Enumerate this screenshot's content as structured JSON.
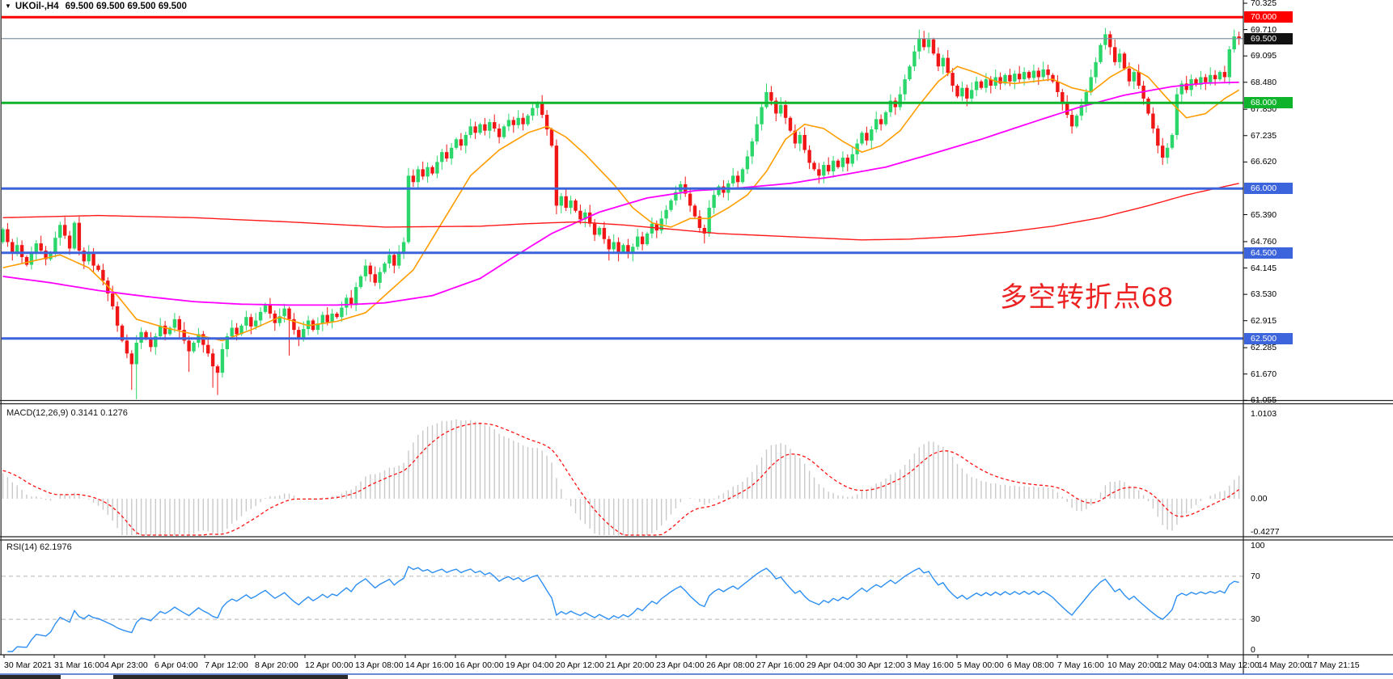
{
  "window": {
    "dropdown_glyph": "▼",
    "symbol_period": "UKOil-,H4",
    "quotes": "69.500 69.500 69.500 69.500"
  },
  "colors": {
    "candle_up": "#2bd76b",
    "candle_down": "#f01616",
    "ma_fast": "#ff9d00",
    "ma_mid": "#ff00ff",
    "ma_slow": "#ff1a1a",
    "macd_hist": "#c9c9c9",
    "macd_signal": "#ff1212",
    "rsi_line": "#2e8ff2",
    "rsi_level_dash": "#b5b5b5",
    "level_red": "#ff0000",
    "level_green": "#10b42c",
    "level_blue": "#3c64dc",
    "price_line_gray": "#8296a8",
    "separator": "#222222",
    "axis_text": "#000000",
    "bottom_bar_blue": "#3b62c9",
    "annotation_red": "#ec2222"
  },
  "annotation": {
    "text": "多空转折点68"
  },
  "price_axis": {
    "labels": [
      {
        "text": "70.325",
        "price": 70.325
      },
      {
        "text": "69.710",
        "price": 69.71
      },
      {
        "text": "69.095",
        "price": 69.095
      },
      {
        "text": "68.480",
        "price": 68.48
      },
      {
        "text": "67.850",
        "price": 67.85
      },
      {
        "text": "67.235",
        "price": 67.235
      },
      {
        "text": "66.620",
        "price": 66.62
      },
      {
        "text": "65.390",
        "price": 65.39
      },
      {
        "text": "64.760",
        "price": 64.76
      },
      {
        "text": "64.145",
        "price": 64.145
      },
      {
        "text": "63.530",
        "price": 63.53
      },
      {
        "text": "62.915",
        "price": 62.915
      },
      {
        "text": "62.285",
        "price": 62.285
      },
      {
        "text": "61.670",
        "price": 61.67
      },
      {
        "text": "61.055",
        "price": 61.055
      }
    ],
    "badges": [
      {
        "text": "70.000",
        "price": 70.0,
        "bg": "#ff0000"
      },
      {
        "text": "69.500",
        "price": 69.5,
        "bg": "#111111"
      },
      {
        "text": "68.000",
        "price": 68.0,
        "bg": "#10b42c"
      },
      {
        "text": "66.000",
        "price": 66.0,
        "bg": "#3c64dc"
      },
      {
        "text": "64.500",
        "price": 64.5,
        "bg": "#3c64dc"
      },
      {
        "text": "62.500",
        "price": 62.5,
        "bg": "#3c64dc"
      }
    ]
  },
  "time_axis": {
    "labels": [
      "30 Mar 2021",
      "31 Mar 16:00",
      "4 Apr 23:00",
      "6 Apr 04:00",
      "7 Apr 12:00",
      "8 Apr 20:00",
      "12 Apr 00:00",
      "13 Apr 08:00",
      "14 Apr 16:00",
      "16 Apr 00:00",
      "19 Apr 04:00",
      "20 Apr 12:00",
      "21 Apr 20:00",
      "23 Apr 04:00",
      "26 Apr 08:00",
      "27 Apr 16:00",
      "29 Apr 04:00",
      "30 Apr 12:00",
      "3 May 16:00",
      "5 May 00:00",
      "6 May 08:00",
      "7 May 16:00",
      "10 May 20:00",
      "12 May 04:00",
      "13 May 12:00",
      "14 May 20:00",
      "17 May 21:15"
    ]
  },
  "chart_data": {
    "type": "candlestick",
    "symbol": "UKOil-",
    "timeframe": "H4",
    "title": "UKOil-,H4 69.500 69.500 69.500 69.500",
    "ylim": [
      61.055,
      70.325
    ],
    "grid": false,
    "horizontal_levels": [
      {
        "price": 70.0,
        "color": "#ff0000",
        "width": 3
      },
      {
        "price": 69.5,
        "color": "#8296a8",
        "width": 1.2
      },
      {
        "price": 68.0,
        "color": "#10b42c",
        "width": 3
      },
      {
        "price": 66.0,
        "color": "#3c64dc",
        "width": 3
      },
      {
        "price": 64.5,
        "color": "#3c64dc",
        "width": 3
      },
      {
        "price": 62.5,
        "color": "#3c64dc",
        "width": 3
      }
    ],
    "first_open": 64.75,
    "closes": [
      65.05,
      64.75,
      64.5,
      64.68,
      64.4,
      64.22,
      64.5,
      64.72,
      64.55,
      64.35,
      64.5,
      64.85,
      65.15,
      64.9,
      64.6,
      65.2,
      64.55,
      64.3,
      64.5,
      64.2,
      64.1,
      63.85,
      63.55,
      63.25,
      62.8,
      62.45,
      62.15,
      61.9,
      62.4,
      62.65,
      62.5,
      62.3,
      62.55,
      62.8,
      62.6,
      62.75,
      62.95,
      62.7,
      62.45,
      62.2,
      62.4,
      62.6,
      62.35,
      62.15,
      61.85,
      61.7,
      62.25,
      62.55,
      62.75,
      62.6,
      62.8,
      63.0,
      62.78,
      62.92,
      63.12,
      63.3,
      63.08,
      62.86,
      63.02,
      63.2,
      62.95,
      62.7,
      62.5,
      62.72,
      62.92,
      62.7,
      62.85,
      63.05,
      62.88,
      63.08,
      63.0,
      63.22,
      63.45,
      63.28,
      63.7,
      63.95,
      64.2,
      64.0,
      63.8,
      64.05,
      64.25,
      64.45,
      64.2,
      64.5,
      64.75,
      66.3,
      66.15,
      66.45,
      66.28,
      66.5,
      66.35,
      66.62,
      66.85,
      66.7,
      66.95,
      67.15,
      67.0,
      67.25,
      67.45,
      67.3,
      67.5,
      67.35,
      67.55,
      67.4,
      67.2,
      67.45,
      67.6,
      67.48,
      67.65,
      67.5,
      67.7,
      67.88,
      68.0,
      67.72,
      67.38,
      67.0,
      65.6,
      65.82,
      65.55,
      65.72,
      65.48,
      65.28,
      65.44,
      65.18,
      64.92,
      65.08,
      64.82,
      64.58,
      64.75,
      64.52,
      64.68,
      64.48,
      64.64,
      64.88,
      64.7,
      64.95,
      65.18,
      65.02,
      65.3,
      65.5,
      65.72,
      65.92,
      66.1,
      65.88,
      65.6,
      65.35,
      65.08,
      64.95,
      65.55,
      65.85,
      66.05,
      65.9,
      66.12,
      66.3,
      66.15,
      66.45,
      66.75,
      67.1,
      67.5,
      67.9,
      68.25,
      68.05,
      67.75,
      67.95,
      67.65,
      67.35,
      67.05,
      67.25,
      66.9,
      66.6,
      66.45,
      66.3,
      66.55,
      66.4,
      66.65,
      66.5,
      66.72,
      66.58,
      66.8,
      67.05,
      67.3,
      67.12,
      67.38,
      67.62,
      67.5,
      67.78,
      68.05,
      67.9,
      68.2,
      68.55,
      68.85,
      69.2,
      69.5,
      69.3,
      69.48,
      69.15,
      68.85,
      69.05,
      68.7,
      68.4,
      68.15,
      68.35,
      68.1,
      68.3,
      68.5,
      68.35,
      68.55,
      68.4,
      68.6,
      68.45,
      68.65,
      68.5,
      68.68,
      68.55,
      68.72,
      68.58,
      68.75,
      68.6,
      68.78,
      68.65,
      68.5,
      68.25,
      68.0,
      67.72,
      67.45,
      67.7,
      67.95,
      68.25,
      68.6,
      68.95,
      69.35,
      69.6,
      69.3,
      68.95,
      69.15,
      68.8,
      68.5,
      68.72,
      68.4,
      68.1,
      67.75,
      67.4,
      67.0,
      66.72,
      66.95,
      67.25,
      68.2,
      68.45,
      68.3,
      68.55,
      68.42,
      68.6,
      68.48,
      68.65,
      68.55,
      68.72,
      68.6,
      69.25,
      69.55,
      69.5
    ],
    "wick_overrides": {
      "27": {
        "low": 61.3
      },
      "28": {
        "low": 61.08
      },
      "39": {
        "low": 61.72
      },
      "44": {
        "low": 61.35
      },
      "45": {
        "low": 61.18
      },
      "60": {
        "low": 62.1
      },
      "85": {
        "high": 66.48
      },
      "112": {
        "high": 68.04
      },
      "116": {
        "low": 65.4
      },
      "127": {
        "low": 64.32
      },
      "129": {
        "low": 64.3
      },
      "147": {
        "low": 64.72
      },
      "160": {
        "high": 68.45
      },
      "171": {
        "low": 66.12
      },
      "192": {
        "high": 69.71
      },
      "194": {
        "high": 69.64
      },
      "224": {
        "low": 67.28
      },
      "231": {
        "high": 69.75
      },
      "243": {
        "low": 66.55
      },
      "258": {
        "high": 69.71
      }
    },
    "ma_lines": [
      {
        "name": "ma-fast-orange",
        "color": "#ff9d00",
        "width": 1.6,
        "anchors": [
          [
            0,
            64.15
          ],
          [
            8,
            64.35
          ],
          [
            12,
            64.45
          ],
          [
            18,
            64.15
          ],
          [
            24,
            63.5
          ],
          [
            28,
            62.95
          ],
          [
            34,
            62.75
          ],
          [
            40,
            62.6
          ],
          [
            46,
            62.45
          ],
          [
            52,
            62.7
          ],
          [
            58,
            63.0
          ],
          [
            64,
            62.8
          ],
          [
            70,
            62.9
          ],
          [
            76,
            63.1
          ],
          [
            82,
            63.7
          ],
          [
            86,
            64.1
          ],
          [
            92,
            65.2
          ],
          [
            98,
            66.3
          ],
          [
            104,
            66.9
          ],
          [
            110,
            67.3
          ],
          [
            114,
            67.45
          ],
          [
            118,
            67.2
          ],
          [
            122,
            66.8
          ],
          [
            128,
            66.1
          ],
          [
            132,
            65.55
          ],
          [
            136,
            65.2
          ],
          [
            140,
            65.1
          ],
          [
            144,
            65.3
          ],
          [
            148,
            65.3
          ],
          [
            152,
            65.55
          ],
          [
            156,
            65.85
          ],
          [
            160,
            66.4
          ],
          [
            164,
            67.15
          ],
          [
            168,
            67.5
          ],
          [
            172,
            67.4
          ],
          [
            176,
            67.1
          ],
          [
            180,
            66.85
          ],
          [
            184,
            67.0
          ],
          [
            188,
            67.35
          ],
          [
            192,
            67.95
          ],
          [
            196,
            68.5
          ],
          [
            200,
            68.85
          ],
          [
            204,
            68.7
          ],
          [
            208,
            68.5
          ],
          [
            212,
            68.45
          ],
          [
            216,
            68.5
          ],
          [
            220,
            68.55
          ],
          [
            224,
            68.35
          ],
          [
            228,
            68.25
          ],
          [
            232,
            68.6
          ],
          [
            236,
            68.85
          ],
          [
            240,
            68.6
          ],
          [
            244,
            68.1
          ],
          [
            248,
            67.65
          ],
          [
            252,
            67.75
          ],
          [
            256,
            68.1
          ],
          [
            259,
            68.3
          ]
        ]
      },
      {
        "name": "ma-mid-magenta",
        "color": "#ff00ff",
        "width": 1.8,
        "anchors": [
          [
            0,
            63.95
          ],
          [
            10,
            63.8
          ],
          [
            20,
            63.62
          ],
          [
            30,
            63.48
          ],
          [
            40,
            63.36
          ],
          [
            50,
            63.3
          ],
          [
            60,
            63.28
          ],
          [
            70,
            63.28
          ],
          [
            80,
            63.33
          ],
          [
            90,
            63.5
          ],
          [
            100,
            63.9
          ],
          [
            107,
            64.4
          ],
          [
            115,
            64.95
          ],
          [
            125,
            65.45
          ],
          [
            135,
            65.78
          ],
          [
            145,
            65.95
          ],
          [
            155,
            66.02
          ],
          [
            165,
            66.12
          ],
          [
            175,
            66.3
          ],
          [
            185,
            66.5
          ],
          [
            195,
            66.82
          ],
          [
            205,
            67.15
          ],
          [
            215,
            67.52
          ],
          [
            225,
            67.88
          ],
          [
            235,
            68.18
          ],
          [
            245,
            68.38
          ],
          [
            252,
            68.46
          ],
          [
            259,
            68.48
          ]
        ]
      },
      {
        "name": "ma-slow-red",
        "color": "#ff1a1a",
        "width": 1.4,
        "anchors": [
          [
            0,
            65.32
          ],
          [
            20,
            65.37
          ],
          [
            40,
            65.32
          ],
          [
            60,
            65.22
          ],
          [
            80,
            65.1
          ],
          [
            100,
            65.12
          ],
          [
            110,
            65.18
          ],
          [
            120,
            65.22
          ],
          [
            130,
            65.15
          ],
          [
            140,
            65.05
          ],
          [
            150,
            64.95
          ],
          [
            160,
            64.9
          ],
          [
            170,
            64.85
          ],
          [
            180,
            64.8
          ],
          [
            190,
            64.82
          ],
          [
            200,
            64.88
          ],
          [
            210,
            64.98
          ],
          [
            220,
            65.12
          ],
          [
            230,
            65.32
          ],
          [
            240,
            65.6
          ],
          [
            248,
            65.85
          ],
          [
            254,
            66.0
          ],
          [
            259,
            66.12
          ]
        ]
      }
    ],
    "indicators": [
      {
        "name": "MACD",
        "label": "MACD(12,26,9)",
        "values_text": "0.3141 0.1276",
        "axis_labels": [
          "1.0103",
          "0.00",
          "-0.4277"
        ],
        "params": [
          12,
          26,
          9
        ]
      },
      {
        "name": "RSI",
        "label": "RSI(14)",
        "value_text": "62.1976",
        "axis_labels": [
          "100",
          "70",
          "30",
          "0"
        ],
        "levels": [
          70,
          30
        ],
        "params": [
          14
        ]
      }
    ]
  }
}
